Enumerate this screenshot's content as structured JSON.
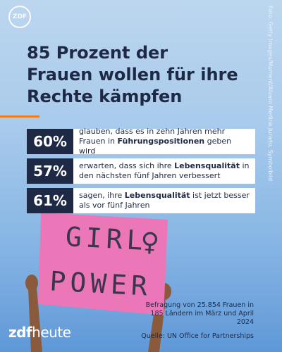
{
  "logo": "ZDF",
  "title": "85 Prozent der Frauen wollen für ihre Rechte kämpfen",
  "photo_credit": "Foto: Getty Images/Moment/Alvaro Medina Jurado, Symbolbild",
  "stats": [
    {
      "percent": "60%",
      "text_parts": [
        {
          "text": "glauben, dass es in zehn Jahren mehr Frauen in ",
          "bold": false
        },
        {
          "text": "Führungspositionen",
          "bold": true
        },
        {
          "text": " geben wird",
          "bold": false
        }
      ]
    },
    {
      "percent": "57%",
      "text_parts": [
        {
          "text": "erwarten, dass sich ihre ",
          "bold": false
        },
        {
          "text": "Lebensqualität",
          "bold": true
        },
        {
          "text": " in den nächsten fünf Jahren verbessert",
          "bold": false
        }
      ]
    },
    {
      "percent": "61%",
      "text_parts": [
        {
          "text": "sagen, ihre ",
          "bold": false
        },
        {
          "text": "Lebensqualität",
          "bold": true
        },
        {
          "text": " ist jetzt besser als vor fünf Jahren",
          "bold": false
        }
      ]
    }
  ],
  "sign": {
    "line1": "GIRL",
    "symbol": "♀",
    "line2": "POWER"
  },
  "survey_note": "Befragung von 25.854 Frauen in 185 Ländern im März und April 2024",
  "source": "Quelle: UN Office for Partnerships",
  "brand": {
    "zdf": "zdf",
    "heute": "heute"
  }
}
